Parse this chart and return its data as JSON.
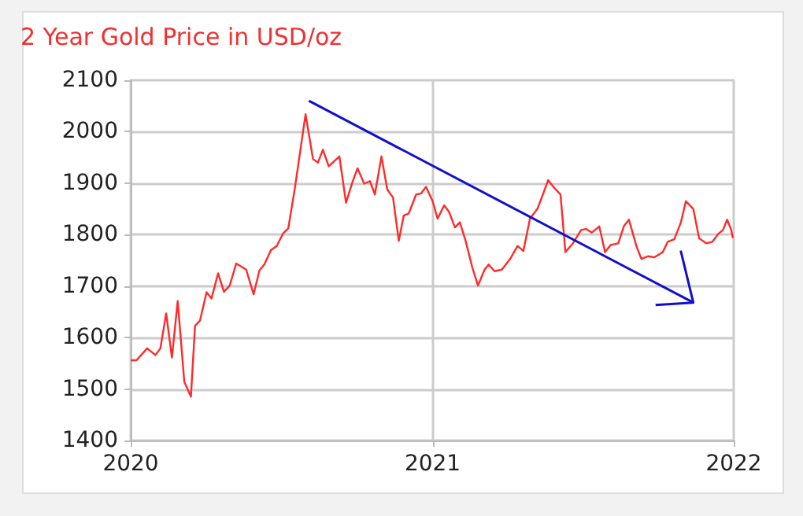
{
  "chart_data": {
    "type": "line",
    "title": "2 Year Gold Price in USD/oz",
    "x": [
      "2020-01-01",
      "2020-01-08",
      "2020-01-21",
      "2020-01-31",
      "2020-02-06",
      "2020-02-13",
      "2020-02-20",
      "2020-02-27",
      "2020-03-06",
      "2020-03-14",
      "2020-03-19",
      "2020-03-25",
      "2020-04-02",
      "2020-04-08",
      "2020-04-16",
      "2020-04-23",
      "2020-04-30",
      "2020-05-08",
      "2020-05-20",
      "2020-05-29",
      "2020-06-05",
      "2020-06-11",
      "2020-06-19",
      "2020-06-26",
      "2020-07-04",
      "2020-07-10",
      "2020-07-18",
      "2020-07-31",
      "2020-08-09",
      "2020-08-15",
      "2020-08-21",
      "2020-08-28",
      "2020-09-10",
      "2020-09-18",
      "2020-09-26",
      "2020-10-02",
      "2020-10-10",
      "2020-10-17",
      "2020-10-23",
      "2020-10-31",
      "2020-11-07",
      "2020-11-14",
      "2020-11-21",
      "2020-11-27",
      "2020-12-03",
      "2020-12-12",
      "2020-12-18",
      "2020-12-24",
      "2021-01-01",
      "2021-01-07",
      "2021-01-15",
      "2021-01-21",
      "2021-01-28",
      "2021-02-03",
      "2021-02-10",
      "2021-02-18",
      "2021-02-25",
      "2021-03-05",
      "2021-03-10",
      "2021-03-17",
      "2021-03-26",
      "2021-04-05",
      "2021-04-14",
      "2021-04-21",
      "2021-04-29",
      "2021-05-08",
      "2021-05-14",
      "2021-05-21",
      "2021-05-29",
      "2021-06-05",
      "2021-06-11",
      "2021-06-20",
      "2021-06-30",
      "2021-07-06",
      "2021-07-13",
      "2021-07-22",
      "2021-07-29",
      "2021-08-05",
      "2021-08-14",
      "2021-08-21",
      "2021-08-27",
      "2021-09-05",
      "2021-09-11",
      "2021-09-19",
      "2021-09-27",
      "2021-10-07",
      "2021-10-13",
      "2021-10-21",
      "2021-10-29",
      "2021-11-04",
      "2021-11-13",
      "2021-11-20",
      "2021-11-29",
      "2021-12-06",
      "2021-12-13",
      "2021-12-19",
      "2021-12-24",
      "2021-12-29",
      "2021-12-31"
    ],
    "series": [
      {
        "type": "line",
        "color": "#1010cc",
        "x": [
          "2020-08-04",
          "2021-11-13"
        ],
        "values": [
          2060,
          1668
        ]
      },
      {
        "color": "#ff2a2a",
        "values": [
          1556,
          1556,
          1579,
          1566,
          1579,
          1647,
          1561,
          1671,
          1514,
          1485,
          1623,
          1633,
          1688,
          1676,
          1725,
          1689,
          1701,
          1744,
          1732,
          1684,
          1730,
          1742,
          1770,
          1778,
          1803,
          1812,
          1890,
          2034,
          1947,
          1940,
          1965,
          1933,
          1952,
          1862,
          1903,
          1929,
          1899,
          1904,
          1878,
          1952,
          1888,
          1872,
          1788,
          1837,
          1841,
          1878,
          1880,
          1893,
          1865,
          1831,
          1857,
          1844,
          1814,
          1824,
          1788,
          1737,
          1701,
          1732,
          1742,
          1729,
          1732,
          1753,
          1778,
          1768,
          1831,
          1850,
          1875,
          1906,
          1890,
          1878,
          1766,
          1783,
          1809,
          1811,
          1804,
          1816,
          1766,
          1780,
          1783,
          1817,
          1829,
          1778,
          1753,
          1758,
          1756,
          1766,
          1786,
          1791,
          1824,
          1865,
          1850,
          1793,
          1783,
          1786,
          1801,
          1809,
          1829,
          1809,
          1793
        ]
      }
    ],
    "xlim": [
      "2020-01-01",
      "2022-01-01"
    ],
    "xticks": [
      "2020",
      "2021",
      "2022"
    ],
    "ylim": [
      1400,
      2100
    ],
    "yticks": [
      1400,
      1500,
      1600,
      1700,
      1800,
      1900,
      2000,
      2100
    ],
    "grid": true,
    "marker": "none",
    "line_style": "solid"
  }
}
